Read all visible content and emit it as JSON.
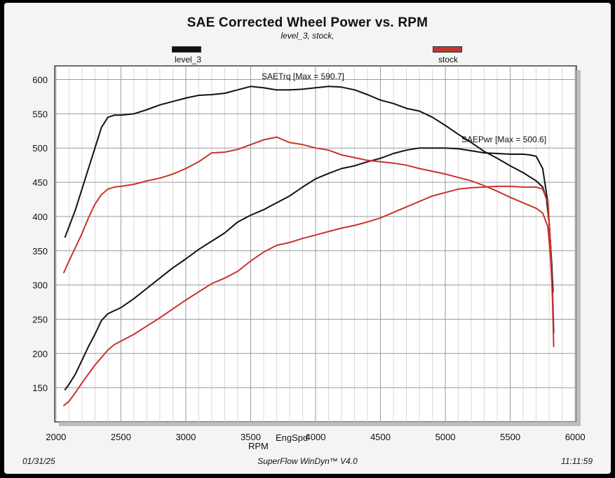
{
  "chart_data": {
    "type": "line",
    "title": "SAE Corrected Wheel Power vs. RPM",
    "subtitle": "level_3, stock,",
    "xlabel": "RPM",
    "xlabel_secondary": "EngSpd",
    "xlim": [
      1990,
      6010
    ],
    "ylim": [
      100,
      620
    ],
    "xticks": [
      2000,
      2500,
      3000,
      3500,
      4000,
      4500,
      5000,
      5500,
      6000
    ],
    "yticks": [
      150,
      200,
      250,
      300,
      350,
      400,
      450,
      500,
      550,
      600
    ],
    "grid": true,
    "legend_placement": "top",
    "series": [
      {
        "name": "level_3",
        "color": "#111111",
        "lines": {
          "torque": [
            [
              2070,
              370
            ],
            [
              2100,
              385
            ],
            [
              2150,
              410
            ],
            [
              2200,
              440
            ],
            [
              2250,
              470
            ],
            [
              2300,
              500
            ],
            [
              2350,
              530
            ],
            [
              2400,
              545
            ],
            [
              2450,
              548
            ],
            [
              2500,
              548
            ],
            [
              2600,
              550
            ],
            [
              2700,
              556
            ],
            [
              2800,
              563
            ],
            [
              2900,
              568
            ],
            [
              3000,
              573
            ],
            [
              3100,
              577
            ],
            [
              3200,
              578
            ],
            [
              3300,
              580
            ],
            [
              3400,
              585
            ],
            [
              3500,
              590
            ],
            [
              3600,
              588
            ],
            [
              3700,
              585
            ],
            [
              3800,
              585
            ],
            [
              3900,
              586
            ],
            [
              4000,
              588
            ],
            [
              4100,
              590
            ],
            [
              4200,
              589
            ],
            [
              4300,
              585
            ],
            [
              4400,
              578
            ],
            [
              4500,
              570
            ],
            [
              4600,
              565
            ],
            [
              4700,
              558
            ],
            [
              4800,
              554
            ],
            [
              4900,
              545
            ],
            [
              5000,
              533
            ],
            [
              5100,
              520
            ],
            [
              5200,
              508
            ],
            [
              5300,
              495
            ],
            [
              5400,
              485
            ],
            [
              5500,
              474
            ],
            [
              5600,
              464
            ],
            [
              5650,
              458
            ],
            [
              5700,
              452
            ],
            [
              5750,
              443
            ],
            [
              5780,
              425
            ],
            [
              5800,
              390
            ],
            [
              5820,
              330
            ],
            [
              5835,
              230
            ]
          ],
          "power": [
            [
              2070,
              147
            ],
            [
              2100,
              155
            ],
            [
              2150,
              170
            ],
            [
              2200,
              190
            ],
            [
              2250,
              210
            ],
            [
              2300,
              228
            ],
            [
              2350,
              248
            ],
            [
              2400,
              258
            ],
            [
              2500,
              267
            ],
            [
              2600,
              280
            ],
            [
              2700,
              295
            ],
            [
              2800,
              310
            ],
            [
              2900,
              325
            ],
            [
              3000,
              338
            ],
            [
              3100,
              352
            ],
            [
              3200,
              364
            ],
            [
              3300,
              376
            ],
            [
              3400,
              392
            ],
            [
              3500,
              402
            ],
            [
              3600,
              410
            ],
            [
              3700,
              420
            ],
            [
              3800,
              430
            ],
            [
              3900,
              443
            ],
            [
              4000,
              455
            ],
            [
              4100,
              463
            ],
            [
              4200,
              470
            ],
            [
              4300,
              474
            ],
            [
              4400,
              480
            ],
            [
              4500,
              485
            ],
            [
              4600,
              492
            ],
            [
              4700,
              497
            ],
            [
              4800,
              500
            ],
            [
              4900,
              500
            ],
            [
              5000,
              500
            ],
            [
              5100,
              499
            ],
            [
              5200,
              496
            ],
            [
              5300,
              493
            ],
            [
              5400,
              492
            ],
            [
              5500,
              491
            ],
            [
              5600,
              491
            ],
            [
              5650,
              490
            ],
            [
              5700,
              488
            ],
            [
              5750,
              470
            ],
            [
              5790,
              420
            ],
            [
              5810,
              360
            ],
            [
              5830,
              290
            ]
          ]
        },
        "annotations": {
          "torque_max_label": "SAETrq [Max = 590.7]",
          "power_max_label": "SAEPwr [Max = 500.6]"
        }
      },
      {
        "name": "stock",
        "color": "#c8342c",
        "lines": {
          "torque": [
            [
              2060,
              318
            ],
            [
              2100,
              335
            ],
            [
              2150,
              355
            ],
            [
              2200,
              375
            ],
            [
              2250,
              398
            ],
            [
              2300,
              418
            ],
            [
              2350,
              432
            ],
            [
              2400,
              440
            ],
            [
              2450,
              443
            ],
            [
              2500,
              444
            ],
            [
              2600,
              447
            ],
            [
              2700,
              452
            ],
            [
              2800,
              456
            ],
            [
              2900,
              462
            ],
            [
              3000,
              470
            ],
            [
              3100,
              480
            ],
            [
              3200,
              493
            ],
            [
              3300,
              494
            ],
            [
              3400,
              498
            ],
            [
              3500,
              505
            ],
            [
              3600,
              512
            ],
            [
              3700,
              516
            ],
            [
              3750,
              512
            ],
            [
              3800,
              508
            ],
            [
              3900,
              505
            ],
            [
              4000,
              500
            ],
            [
              4100,
              497
            ],
            [
              4200,
              490
            ],
            [
              4300,
              486
            ],
            [
              4400,
              482
            ],
            [
              4500,
              480
            ],
            [
              4600,
              478
            ],
            [
              4700,
              475
            ],
            [
              4800,
              470
            ],
            [
              4900,
              466
            ],
            [
              5000,
              462
            ],
            [
              5100,
              457
            ],
            [
              5200,
              452
            ],
            [
              5300,
              445
            ],
            [
              5400,
              437
            ],
            [
              5500,
              428
            ],
            [
              5600,
              420
            ],
            [
              5700,
              412
            ],
            [
              5750,
              405
            ],
            [
              5790,
              385
            ],
            [
              5810,
              340
            ],
            [
              5830,
              270
            ]
          ],
          "power": [
            [
              2060,
              124
            ],
            [
              2100,
              130
            ],
            [
              2150,
              143
            ],
            [
              2200,
              157
            ],
            [
              2250,
              170
            ],
            [
              2300,
              183
            ],
            [
              2350,
              194
            ],
            [
              2400,
              205
            ],
            [
              2450,
              213
            ],
            [
              2500,
              218
            ],
            [
              2600,
              228
            ],
            [
              2700,
              240
            ],
            [
              2800,
              252
            ],
            [
              2900,
              265
            ],
            [
              3000,
              278
            ],
            [
              3100,
              290
            ],
            [
              3200,
              302
            ],
            [
              3300,
              310
            ],
            [
              3400,
              320
            ],
            [
              3500,
              335
            ],
            [
              3600,
              348
            ],
            [
              3700,
              358
            ],
            [
              3800,
              362
            ],
            [
              3900,
              368
            ],
            [
              4000,
              373
            ],
            [
              4100,
              378
            ],
            [
              4200,
              383
            ],
            [
              4300,
              387
            ],
            [
              4400,
              392
            ],
            [
              4500,
              398
            ],
            [
              4600,
              406
            ],
            [
              4700,
              414
            ],
            [
              4800,
              422
            ],
            [
              4900,
              430
            ],
            [
              5000,
              435
            ],
            [
              5100,
              440
            ],
            [
              5200,
              442
            ],
            [
              5300,
              443
            ],
            [
              5400,
              444
            ],
            [
              5500,
              444
            ],
            [
              5600,
              443
            ],
            [
              5650,
              443
            ],
            [
              5700,
              443
            ],
            [
              5750,
              440
            ],
            [
              5790,
              420
            ],
            [
              5810,
              360
            ],
            [
              5825,
              280
            ],
            [
              5835,
              210
            ]
          ]
        }
      }
    ]
  },
  "legend": [
    {
      "label": "level_3",
      "color": "#111111"
    },
    {
      "label": "stock",
      "color": "#c8342c"
    }
  ],
  "footer": {
    "date": "01/31/25",
    "software": "SuperFlow WinDyn™ V4.0",
    "time": "11:11:59"
  }
}
